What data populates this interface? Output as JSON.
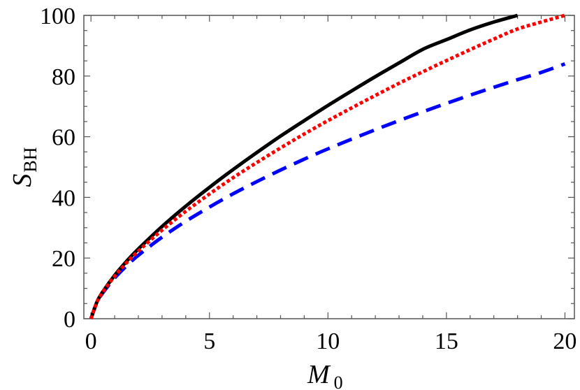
{
  "chart_data": {
    "type": "line",
    "title": "",
    "xlabel": {
      "main": "M",
      "sub": "0"
    },
    "ylabel": {
      "main": "S",
      "sub": "BH"
    },
    "xlim": [
      -0.3,
      20.4
    ],
    "ylim": [
      0,
      100
    ],
    "x_ticks": [
      0,
      5,
      10,
      15,
      20
    ],
    "x_tick_labels": [
      "0",
      "5",
      "10",
      "15",
      "20"
    ],
    "y_ticks": [
      0,
      20,
      40,
      60,
      80,
      100
    ],
    "y_tick_labels": [
      "0",
      "20",
      "40",
      "60",
      "80",
      "100"
    ],
    "grid": false,
    "legend": "none",
    "series": [
      {
        "style": "solid",
        "color": "#000000",
        "x": [
          0,
          0.25,
          0.5,
          1,
          1.5,
          2,
          3,
          4,
          5,
          6,
          7,
          8,
          9,
          10,
          11,
          12,
          13,
          14,
          15,
          16,
          17,
          18
        ],
        "y": [
          0,
          5.5,
          8.9,
          14.3,
          18.9,
          23.0,
          30.4,
          37.1,
          43.3,
          49.2,
          54.8,
          60.2,
          65.3,
          70.3,
          75.1,
          79.8,
          84.3,
          88.8,
          92.0,
          95.2,
          97.8,
          100
        ]
      },
      {
        "style": "dotted",
        "color": "#ff0000",
        "x": [
          0,
          0.25,
          0.5,
          1,
          1.5,
          2,
          3,
          4,
          5,
          6,
          7,
          8,
          9,
          10,
          11,
          12,
          13,
          14,
          15,
          16,
          17,
          18,
          19,
          20
        ],
        "y": [
          0,
          5.4,
          8.8,
          14.0,
          18.4,
          22.3,
          29.2,
          35.4,
          41.1,
          46.5,
          51.5,
          56.3,
          60.9,
          65.3,
          69.5,
          73.6,
          77.6,
          81.4,
          85.1,
          88.7,
          92.2,
          95.5,
          97.8,
          100
        ]
      },
      {
        "style": "dashed",
        "color": "#0000ff",
        "x": [
          0,
          0.25,
          0.5,
          1,
          1.5,
          2,
          3,
          4,
          5,
          6,
          7,
          8,
          9,
          10,
          11,
          12,
          13,
          14,
          15,
          16,
          17,
          18,
          19,
          20
        ],
        "y": [
          0,
          5.3,
          8.5,
          13.4,
          17.4,
          20.9,
          26.9,
          32.1,
          36.8,
          41.2,
          45.2,
          49.0,
          52.6,
          56.0,
          59.2,
          62.3,
          65.3,
          68.2,
          71.0,
          73.7,
          76.3,
          78.8,
          81.2,
          84.0
        ]
      }
    ]
  }
}
